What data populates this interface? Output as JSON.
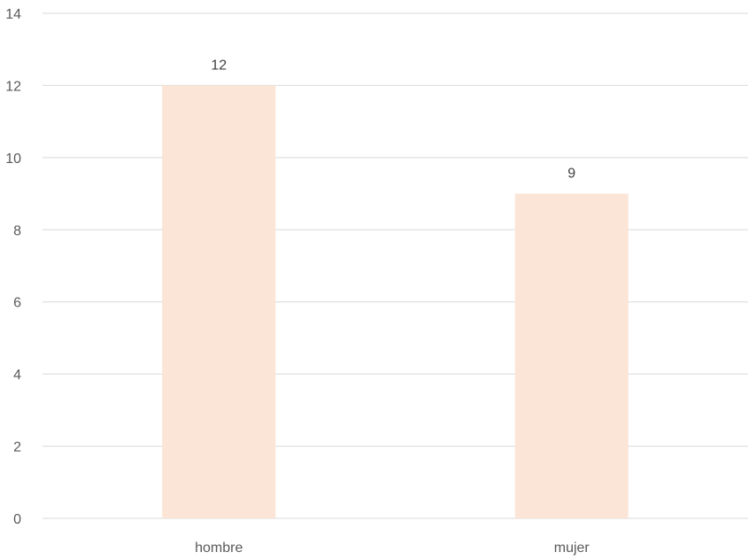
{
  "chart_data": {
    "type": "bar",
    "categories": [
      "hombre",
      "mujer"
    ],
    "values": [
      12,
      9
    ],
    "data_labels": [
      "12",
      "9"
    ],
    "y_ticks": [
      "0",
      "2",
      "4",
      "6",
      "8",
      "10",
      "12",
      "14"
    ],
    "ylim": [
      0,
      14
    ],
    "grid": true,
    "legend": "none",
    "title": "",
    "xlabel": "",
    "ylabel": "",
    "colors": {
      "bar": "#fbe5d6",
      "gridline": "#d9d9d9",
      "tick_text": "#595959",
      "label_text": "#404040"
    }
  }
}
